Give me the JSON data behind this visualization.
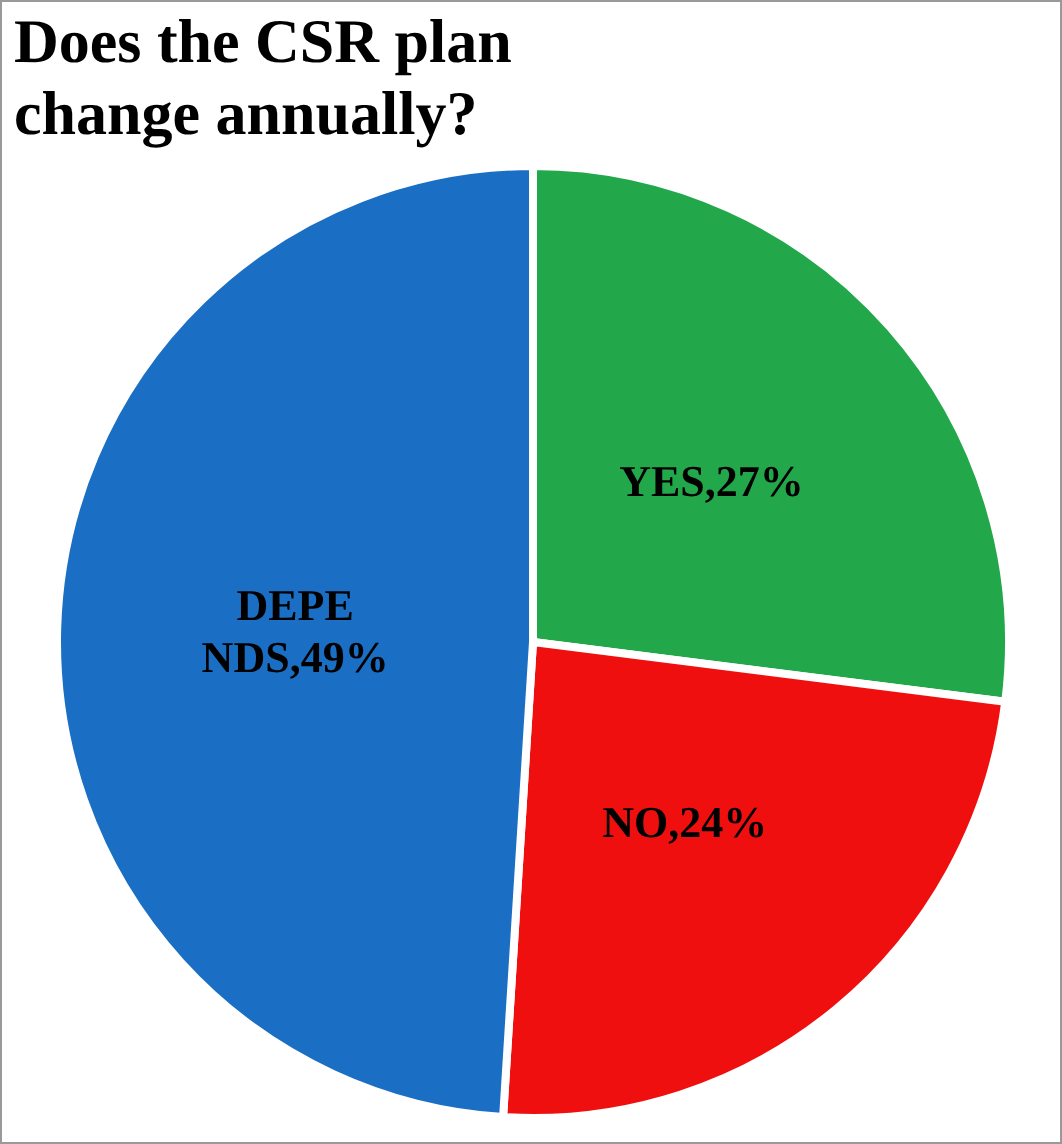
{
  "chart_data": {
    "type": "pie",
    "title": "Does the CSR plan change annually?",
    "categories": [
      "YES",
      "NO",
      "DEPENDS"
    ],
    "values": [
      27,
      24,
      49
    ],
    "colors": [
      "#22a84a",
      "#f00f0f",
      "#1a6fc4"
    ],
    "value_labels": [
      ",27%",
      ",24%",
      ",49%"
    ],
    "legend": false
  }
}
